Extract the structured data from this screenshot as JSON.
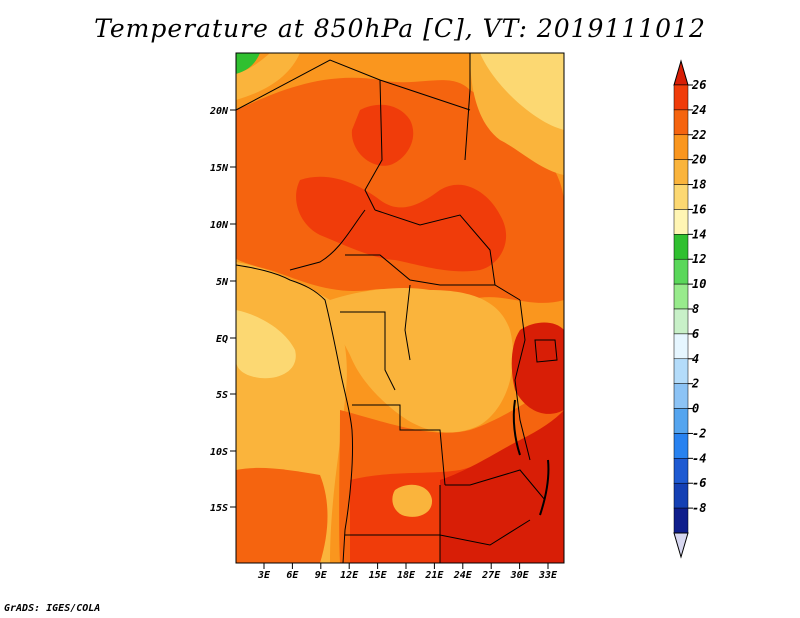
{
  "title": "Temperature at 850hPa [C], VT: 2019111012",
  "credit": "GrADS: IGES/COLA",
  "lat_labels": [
    "20N",
    "15N",
    "10N",
    "5N",
    "EQ",
    "5S",
    "10S",
    "15S"
  ],
  "lon_labels": [
    "3E",
    "6E",
    "9E",
    "12E",
    "15E",
    "18E",
    "21E",
    "24E",
    "27E",
    "30E",
    "33E"
  ],
  "colorbar": {
    "labels": [
      "26",
      "24",
      "22",
      "20",
      "18",
      "16",
      "14",
      "12",
      "10",
      "8",
      "6",
      "4",
      "2",
      "0",
      "-2",
      "-4",
      "-6",
      "-8"
    ],
    "colors": [
      "#d81e06",
      "#f03c0a",
      "#f5640f",
      "#fa961e",
      "#fab43c",
      "#fcd872",
      "#fff5b4",
      "#30c030",
      "#5ad75a",
      "#98eb8c",
      "#c8f0c8",
      "#e6f6ff",
      "#b4dcfa",
      "#8cc3f5",
      "#55a5ef",
      "#2882f0",
      "#1e5ad2",
      "#1440b4",
      "#0f1e8c",
      "#0a0a64"
    ]
  },
  "legend_colors": {
    "c26": "#d81e06",
    "c24": "#f03c0a",
    "c22": "#f5640f",
    "c20": "#fa961e",
    "c18": "#fab43c",
    "c16": "#fcd872",
    "c14": "#fff5b4"
  }
}
